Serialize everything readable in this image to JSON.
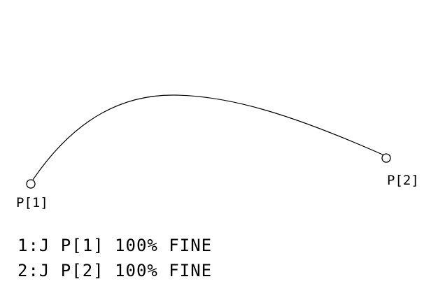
{
  "points": [
    {
      "label": "P[1]"
    },
    {
      "label": "P[2]"
    }
  ],
  "program": [
    {
      "text": "1:J P[1] 100% FINE"
    },
    {
      "text": "2:J P[2] 100% FINE"
    }
  ],
  "colors": {
    "line": "#000000",
    "background": "#ffffff"
  }
}
